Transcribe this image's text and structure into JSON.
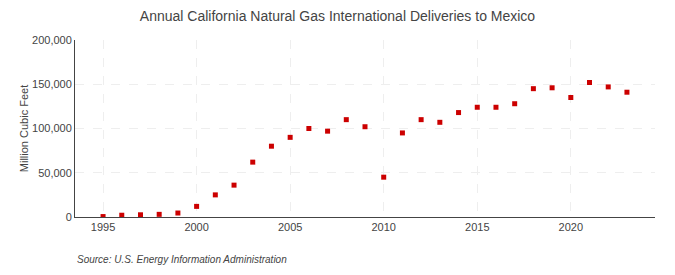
{
  "chart_data": {
    "type": "scatter",
    "title": "Annual California Natural Gas International Deliveries to Mexico",
    "ylabel": "Million Cubic Feet",
    "annotations": [
      "Source: U.S. Energy Information Administration"
    ],
    "x": [
      1995,
      1996,
      1997,
      1998,
      1999,
      2000,
      2001,
      2002,
      2003,
      2004,
      2005,
      2006,
      2007,
      2008,
      2009,
      2010,
      2011,
      2012,
      2013,
      2014,
      2015,
      2016,
      2017,
      2018,
      2019,
      2020,
      2021,
      2022,
      2023
    ],
    "values": [
      500,
      2000,
      2500,
      3000,
      4500,
      12000,
      25000,
      36000,
      62000,
      80000,
      90000,
      100000,
      97000,
      110000,
      102000,
      45000,
      95000,
      110000,
      107000,
      118000,
      124000,
      124000,
      128000,
      145000,
      146000,
      135000,
      152000,
      147000,
      141000
    ],
    "color": "#cc0000",
    "marker": "square",
    "xlim": [
      1993.5,
      2024.5
    ],
    "xticks": [
      1995,
      2000,
      2005,
      2010,
      2015,
      2020
    ],
    "ylim": [
      0,
      200000
    ],
    "yticks": [
      0,
      {
        "value": 50000,
        "label": "50,000"
      },
      {
        "value": 100000,
        "label": "100,000"
      },
      {
        "value": 150000,
        "label": "150,000"
      },
      {
        "value": 200000,
        "label": "200,000"
      }
    ],
    "grid": true
  }
}
